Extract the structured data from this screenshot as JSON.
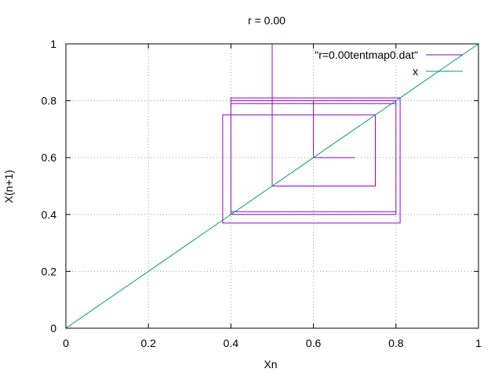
{
  "chart_data": {
    "type": "line",
    "title": "r = 0.00",
    "xlabel": "Xn",
    "ylabel": "X(n+1)",
    "xlim": [
      0,
      1
    ],
    "ylim": [
      0,
      1
    ],
    "xticks": [
      0,
      0.2,
      0.4,
      0.6,
      0.8,
      1
    ],
    "yticks": [
      0,
      0.2,
      0.4,
      0.6,
      0.8,
      1
    ],
    "xtick_labels": [
      "0",
      "0.2",
      "0.4",
      "0.6",
      "0.8",
      "1"
    ],
    "ytick_labels": [
      "0",
      "0.2",
      "0.4",
      "0.6",
      "0.8",
      "1"
    ],
    "grid": true,
    "legend_position": "top-right",
    "series": [
      {
        "name": "\"r=0.00tentmap0.dat\"",
        "color": "#9400d3",
        "x": [
          0.7,
          0.6,
          0.6,
          0.8,
          0.8,
          0.4,
          0.4,
          0.8,
          0.8,
          0.4,
          0.4,
          0.8,
          0.8,
          0.4,
          0.4,
          0.81,
          0.81,
          0.38,
          0.38,
          0.75,
          0.75,
          0.5,
          0.5,
          1.0
        ],
        "y": [
          0.6,
          0.6,
          0.8,
          0.8,
          0.4,
          0.4,
          0.8,
          0.8,
          0.4,
          0.4,
          0.79,
          0.79,
          0.41,
          0.41,
          0.81,
          0.81,
          0.37,
          0.37,
          0.75,
          0.75,
          0.5,
          0.5,
          1.0,
          1.0
        ]
      },
      {
        "name": "x",
        "color": "#009e73",
        "x": [
          0,
          1
        ],
        "y": [
          0,
          1
        ]
      }
    ]
  }
}
